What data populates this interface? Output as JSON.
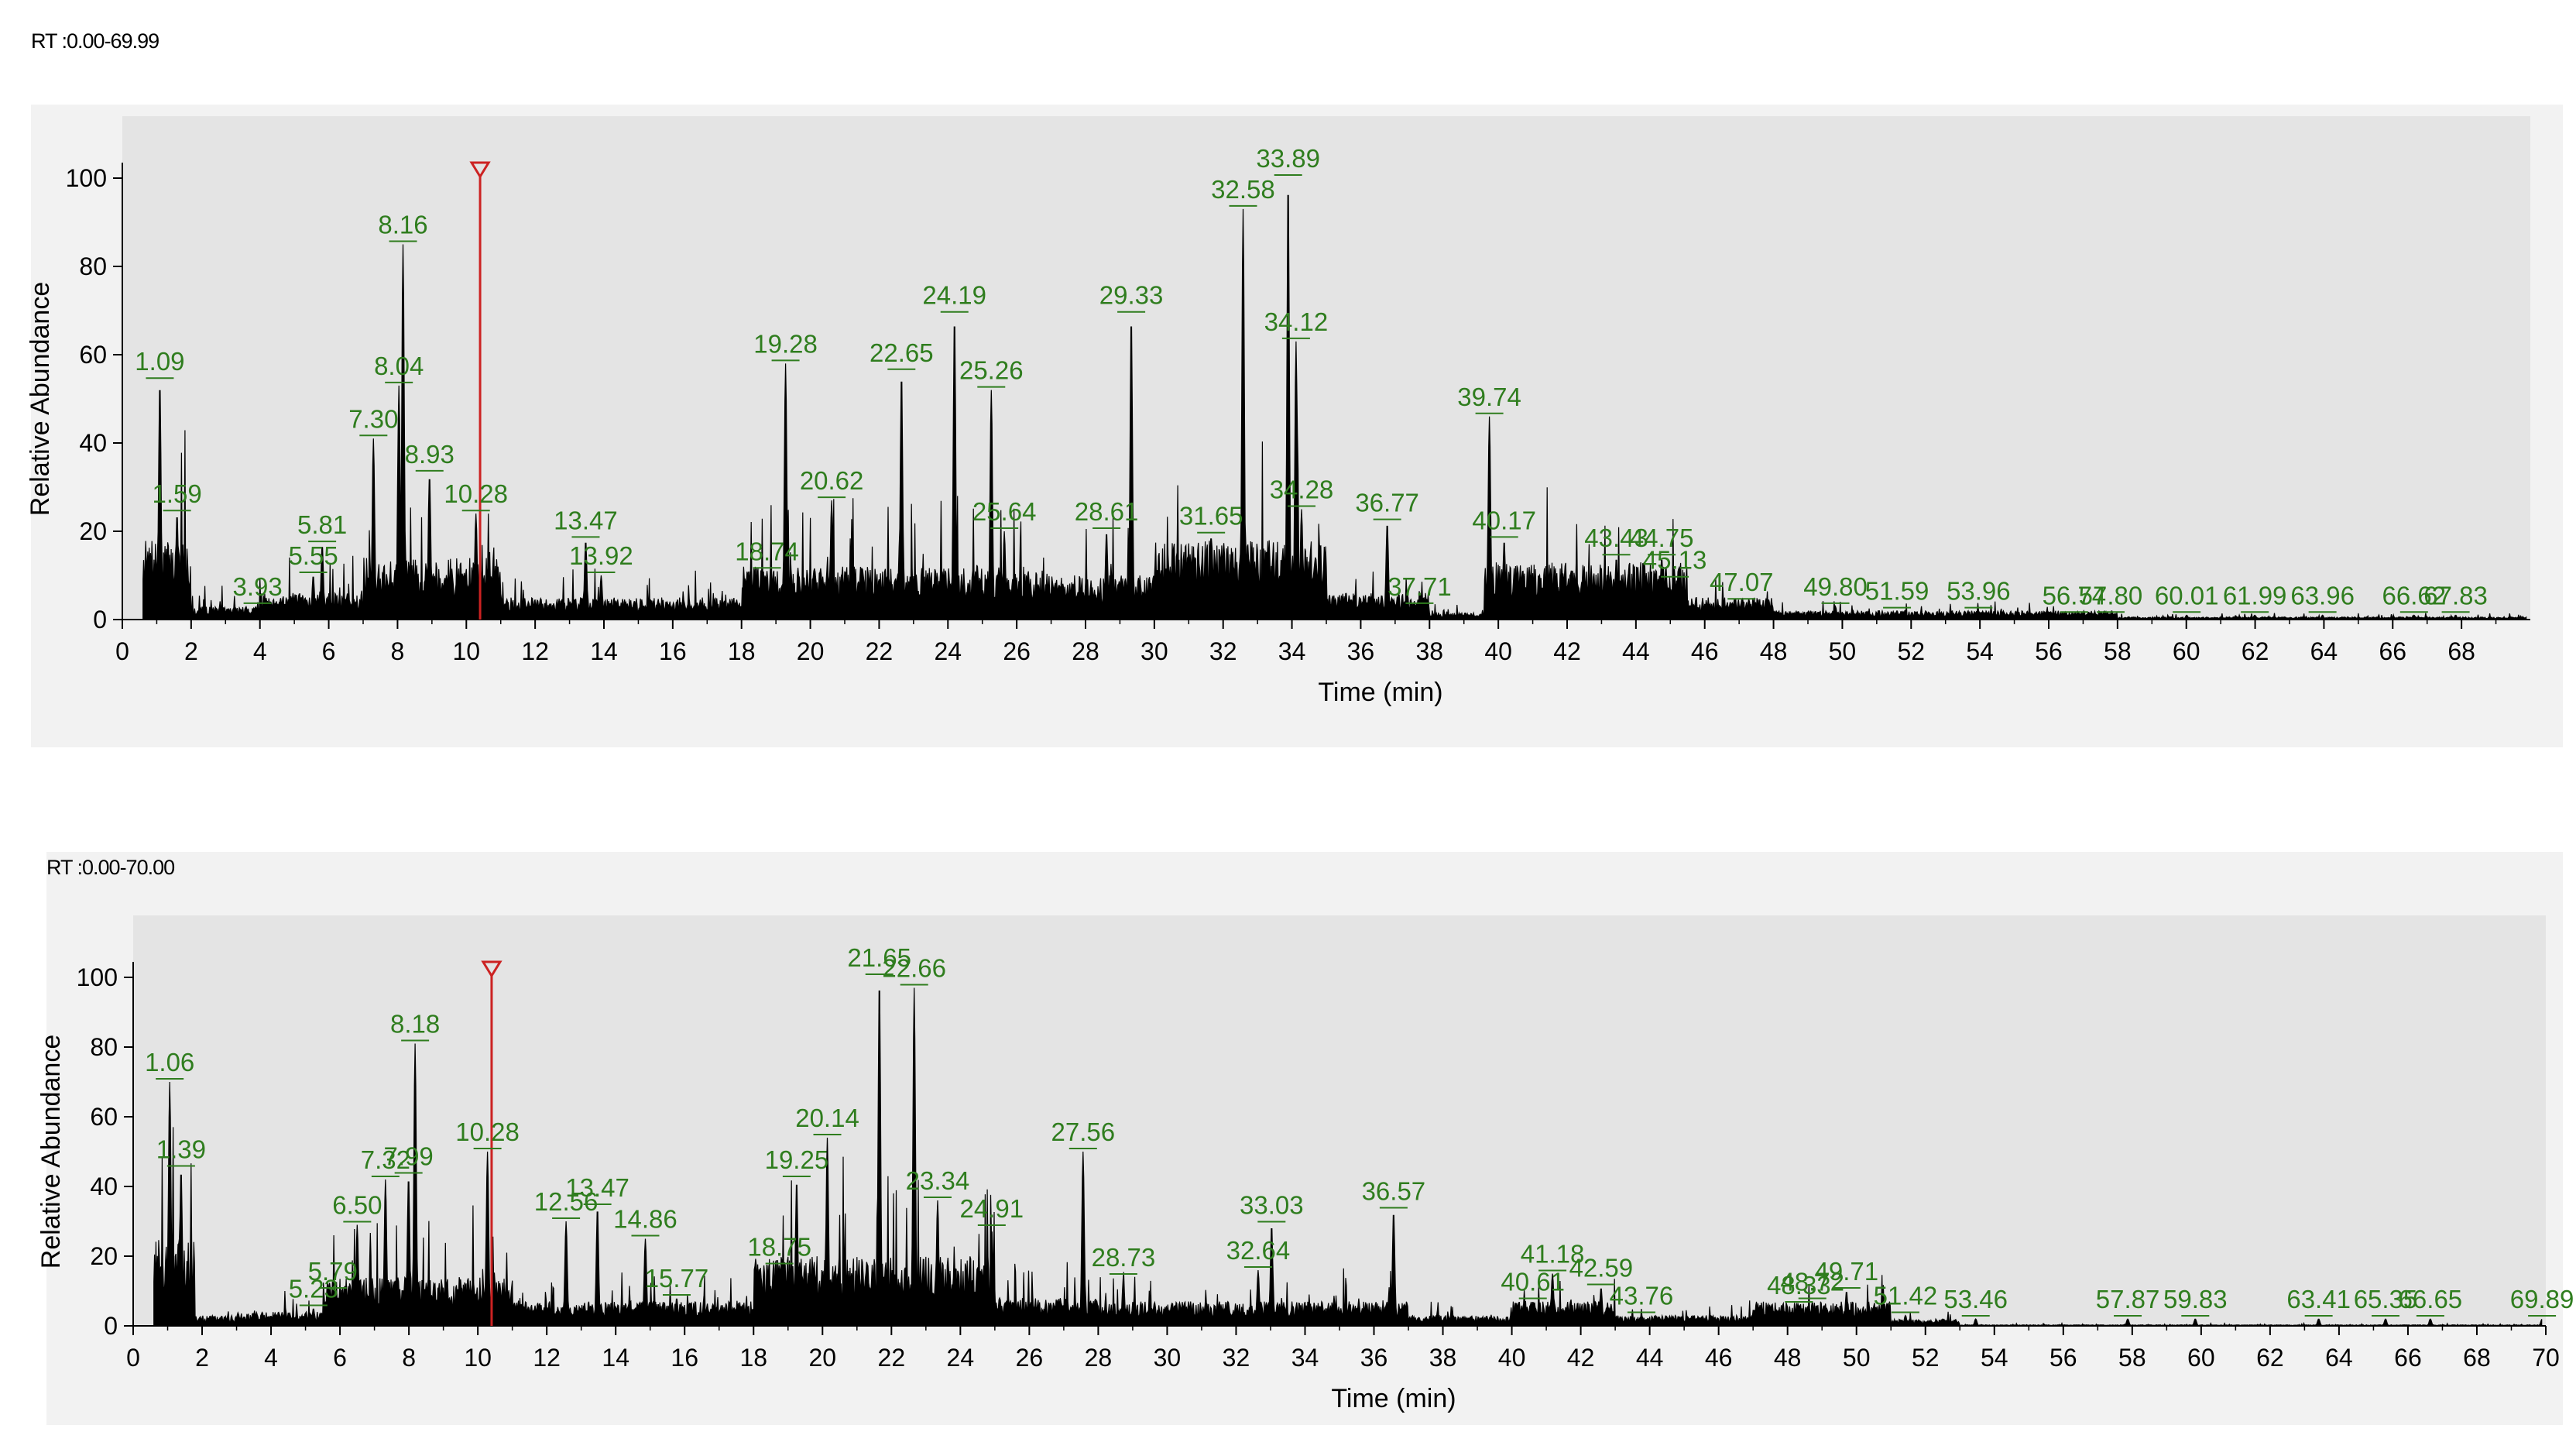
{
  "chart_data": [
    {
      "type": "line",
      "rt_range": "RT :0.00-69.99",
      "xlabel": "Time (min)",
      "ylabel": "Relative Abundance",
      "xlim": [
        0,
        70
      ],
      "ylim": [
        0,
        100
      ],
      "x_ticks": [
        0,
        2,
        4,
        6,
        8,
        10,
        12,
        14,
        16,
        18,
        20,
        22,
        24,
        26,
        28,
        30,
        32,
        34,
        36,
        38,
        40,
        42,
        44,
        46,
        48,
        50,
        52,
        54,
        56,
        58,
        60,
        62,
        64,
        66,
        68
      ],
      "y_ticks": [
        0,
        20,
        40,
        60,
        80,
        100
      ],
      "marker_rt": 10.4,
      "peaks": [
        {
          "rt": 1.09,
          "label": "1.09",
          "value": 54
        },
        {
          "rt": 1.59,
          "label": "1.59",
          "value": 24
        },
        {
          "rt": 3.93,
          "label": "3.93",
          "value": 3
        },
        {
          "rt": 5.55,
          "label": "5.55",
          "value": 10
        },
        {
          "rt": 5.81,
          "label": "5.81",
          "value": 17
        },
        {
          "rt": 7.3,
          "label": "7.30",
          "value": 41
        },
        {
          "rt": 8.04,
          "label": "8.04",
          "value": 53
        },
        {
          "rt": 8.16,
          "label": "8.16",
          "value": 85
        },
        {
          "rt": 8.93,
          "label": "8.93",
          "value": 33
        },
        {
          "rt": 10.28,
          "label": "10.28",
          "value": 24
        },
        {
          "rt": 13.47,
          "label": "13.47",
          "value": 18
        },
        {
          "rt": 13.92,
          "label": "13.92",
          "value": 10
        },
        {
          "rt": 18.74,
          "label": "18.74",
          "value": 11
        },
        {
          "rt": 19.28,
          "label": "19.28",
          "value": 58
        },
        {
          "rt": 20.62,
          "label": "20.62",
          "value": 27
        },
        {
          "rt": 22.65,
          "label": "22.65",
          "value": 56
        },
        {
          "rt": 24.19,
          "label": "24.19",
          "value": 69
        },
        {
          "rt": 25.26,
          "label": "25.26",
          "value": 52
        },
        {
          "rt": 25.64,
          "label": "25.64",
          "value": 20
        },
        {
          "rt": 28.61,
          "label": "28.61",
          "value": 20
        },
        {
          "rt": 29.33,
          "label": "29.33",
          "value": 69
        },
        {
          "rt": 31.65,
          "label": "31.65",
          "value": 19
        },
        {
          "rt": 32.58,
          "label": "32.58",
          "value": 93
        },
        {
          "rt": 33.89,
          "label": "33.89",
          "value": 100
        },
        {
          "rt": 34.12,
          "label": "34.12",
          "value": 63
        },
        {
          "rt": 34.28,
          "label": "34.28",
          "value": 25
        },
        {
          "rt": 36.77,
          "label": "36.77",
          "value": 22
        },
        {
          "rt": 37.71,
          "label": "37.71",
          "value": 3
        },
        {
          "rt": 39.74,
          "label": "39.74",
          "value": 46
        },
        {
          "rt": 40.17,
          "label": "40.17",
          "value": 18
        },
        {
          "rt": 43.43,
          "label": "43.43",
          "value": 14
        },
        {
          "rt": 44.75,
          "label": "44.75",
          "value": 14
        },
        {
          "rt": 45.13,
          "label": "45.13",
          "value": 9
        },
        {
          "rt": 47.07,
          "label": "47.07",
          "value": 4
        },
        {
          "rt": 49.8,
          "label": "49.80",
          "value": 3
        },
        {
          "rt": 51.59,
          "label": "51.59",
          "value": 2
        },
        {
          "rt": 53.96,
          "label": "53.96",
          "value": 2
        },
        {
          "rt": 56.74,
          "label": "56.74",
          "value": 1
        },
        {
          "rt": 57.8,
          "label": "57.80",
          "value": 1
        },
        {
          "rt": 60.01,
          "label": "60.01",
          "value": 1
        },
        {
          "rt": 61.99,
          "label": "61.99",
          "value": 1
        },
        {
          "rt": 63.96,
          "label": "63.96",
          "value": 1
        },
        {
          "rt": 66.62,
          "label": "66.62",
          "value": 1
        },
        {
          "rt": 67.83,
          "label": "67.83",
          "value": 1
        }
      ]
    },
    {
      "type": "line",
      "rt_range": "RT :0.00-70.00",
      "xlabel": "Time (min)",
      "ylabel": "Relative Abundance",
      "xlim": [
        0,
        70
      ],
      "ylim": [
        0,
        100
      ],
      "x_ticks": [
        0,
        2,
        4,
        6,
        8,
        10,
        12,
        14,
        16,
        18,
        20,
        22,
        24,
        26,
        28,
        30,
        32,
        34,
        36,
        38,
        40,
        42,
        44,
        46,
        48,
        50,
        52,
        54,
        56,
        58,
        60,
        62,
        64,
        66,
        68,
        70
      ],
      "y_ticks": [
        0,
        20,
        40,
        60,
        80,
        100
      ],
      "marker_rt": 10.4,
      "peaks": [
        {
          "rt": 1.06,
          "label": "1.06",
          "value": 70
        },
        {
          "rt": 1.39,
          "label": "1.39",
          "value": 45
        },
        {
          "rt": 5.23,
          "label": "5.23",
          "value": 5
        },
        {
          "rt": 5.79,
          "label": "5.79",
          "value": 10
        },
        {
          "rt": 6.5,
          "label": "6.50",
          "value": 29
        },
        {
          "rt": 7.32,
          "label": "7.32",
          "value": 42
        },
        {
          "rt": 7.99,
          "label": "7.99",
          "value": 43
        },
        {
          "rt": 8.18,
          "label": "8.18",
          "value": 81
        },
        {
          "rt": 10.28,
          "label": "10.28",
          "value": 50
        },
        {
          "rt": 12.56,
          "label": "12.56",
          "value": 30
        },
        {
          "rt": 13.47,
          "label": "13.47",
          "value": 34
        },
        {
          "rt": 14.86,
          "label": "14.86",
          "value": 25
        },
        {
          "rt": 15.77,
          "label": "15.77",
          "value": 8
        },
        {
          "rt": 18.75,
          "label": "18.75",
          "value": 17
        },
        {
          "rt": 19.25,
          "label": "19.25",
          "value": 42
        },
        {
          "rt": 20.14,
          "label": "20.14",
          "value": 54
        },
        {
          "rt": 21.65,
          "label": "21.65",
          "value": 100
        },
        {
          "rt": 22.66,
          "label": "22.66",
          "value": 97
        },
        {
          "rt": 23.34,
          "label": "23.34",
          "value": 36
        },
        {
          "rt": 24.91,
          "label": "24.91",
          "value": 28
        },
        {
          "rt": 27.56,
          "label": "27.56",
          "value": 50
        },
        {
          "rt": 28.73,
          "label": "28.73",
          "value": 14
        },
        {
          "rt": 32.64,
          "label": "32.64",
          "value": 16
        },
        {
          "rt": 33.03,
          "label": "33.03",
          "value": 29
        },
        {
          "rt": 36.57,
          "label": "36.57",
          "value": 33
        },
        {
          "rt": 40.61,
          "label": "40.61",
          "value": 7
        },
        {
          "rt": 41.18,
          "label": "41.18",
          "value": 15
        },
        {
          "rt": 42.59,
          "label": "42.59",
          "value": 11
        },
        {
          "rt": 43.76,
          "label": "43.76",
          "value": 3
        },
        {
          "rt": 48.33,
          "label": "48.33",
          "value": 6
        },
        {
          "rt": 48.72,
          "label": "48.72",
          "value": 7
        },
        {
          "rt": 49.71,
          "label": "49.71",
          "value": 10
        },
        {
          "rt": 51.42,
          "label": "51.42",
          "value": 3
        },
        {
          "rt": 53.46,
          "label": "53.46",
          "value": 2
        },
        {
          "rt": 57.87,
          "label": "57.87",
          "value": 2
        },
        {
          "rt": 59.83,
          "label": "59.83",
          "value": 2
        },
        {
          "rt": 63.41,
          "label": "63.41",
          "value": 2
        },
        {
          "rt": 65.35,
          "label": "65.35",
          "value": 2
        },
        {
          "rt": 66.65,
          "label": "66.65",
          "value": 2
        },
        {
          "rt": 69.89,
          "label": "69.89",
          "value": 2
        }
      ]
    }
  ],
  "colors": {
    "trace": "#000000",
    "peak_label": "#2f7d1e",
    "marker": "#cc2222",
    "plot_bg": "#e4e4e4",
    "panel_bg": "#f2f2f2"
  }
}
